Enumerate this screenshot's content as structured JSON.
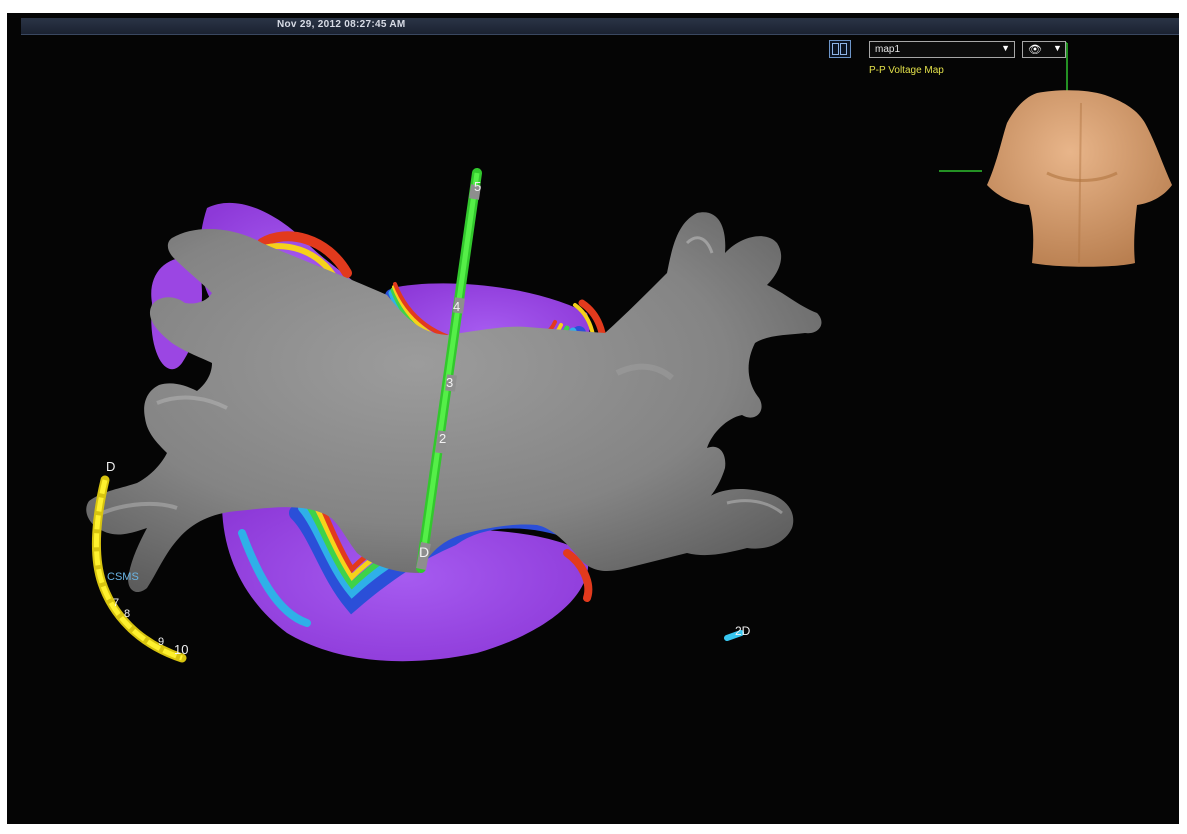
{
  "header": {
    "timestamp": "Nov 29, 2012 08:27:45 AM"
  },
  "map_controls": {
    "layout_icon": "split-view-icon",
    "map_select_value": "map1",
    "dropdown_icon": "triangle-down",
    "view_icon": "eye-icon",
    "map_type_label": "P-P Voltage Map"
  },
  "catheters": {
    "ablation": {
      "color": "#3fe03a",
      "electrode_labels": {
        "tip": "D",
        "e2": "2",
        "e3": "3",
        "e4": "4",
        "e5": "5"
      }
    },
    "coronary_sinus": {
      "color": "#f2e21a",
      "tip_label": "D",
      "name_label": "CSMS",
      "electrode_labels": {
        "e7": "7",
        "e8": "8",
        "e9": "9",
        "e10": "10"
      }
    },
    "reference": {
      "color": "#38c7f0",
      "label": "2D"
    }
  },
  "colors": {
    "background": "#050505",
    "scar_gray": "#8a8a8a",
    "healthy_purple": "#a04de8",
    "torso_skin": "#d39a68"
  }
}
